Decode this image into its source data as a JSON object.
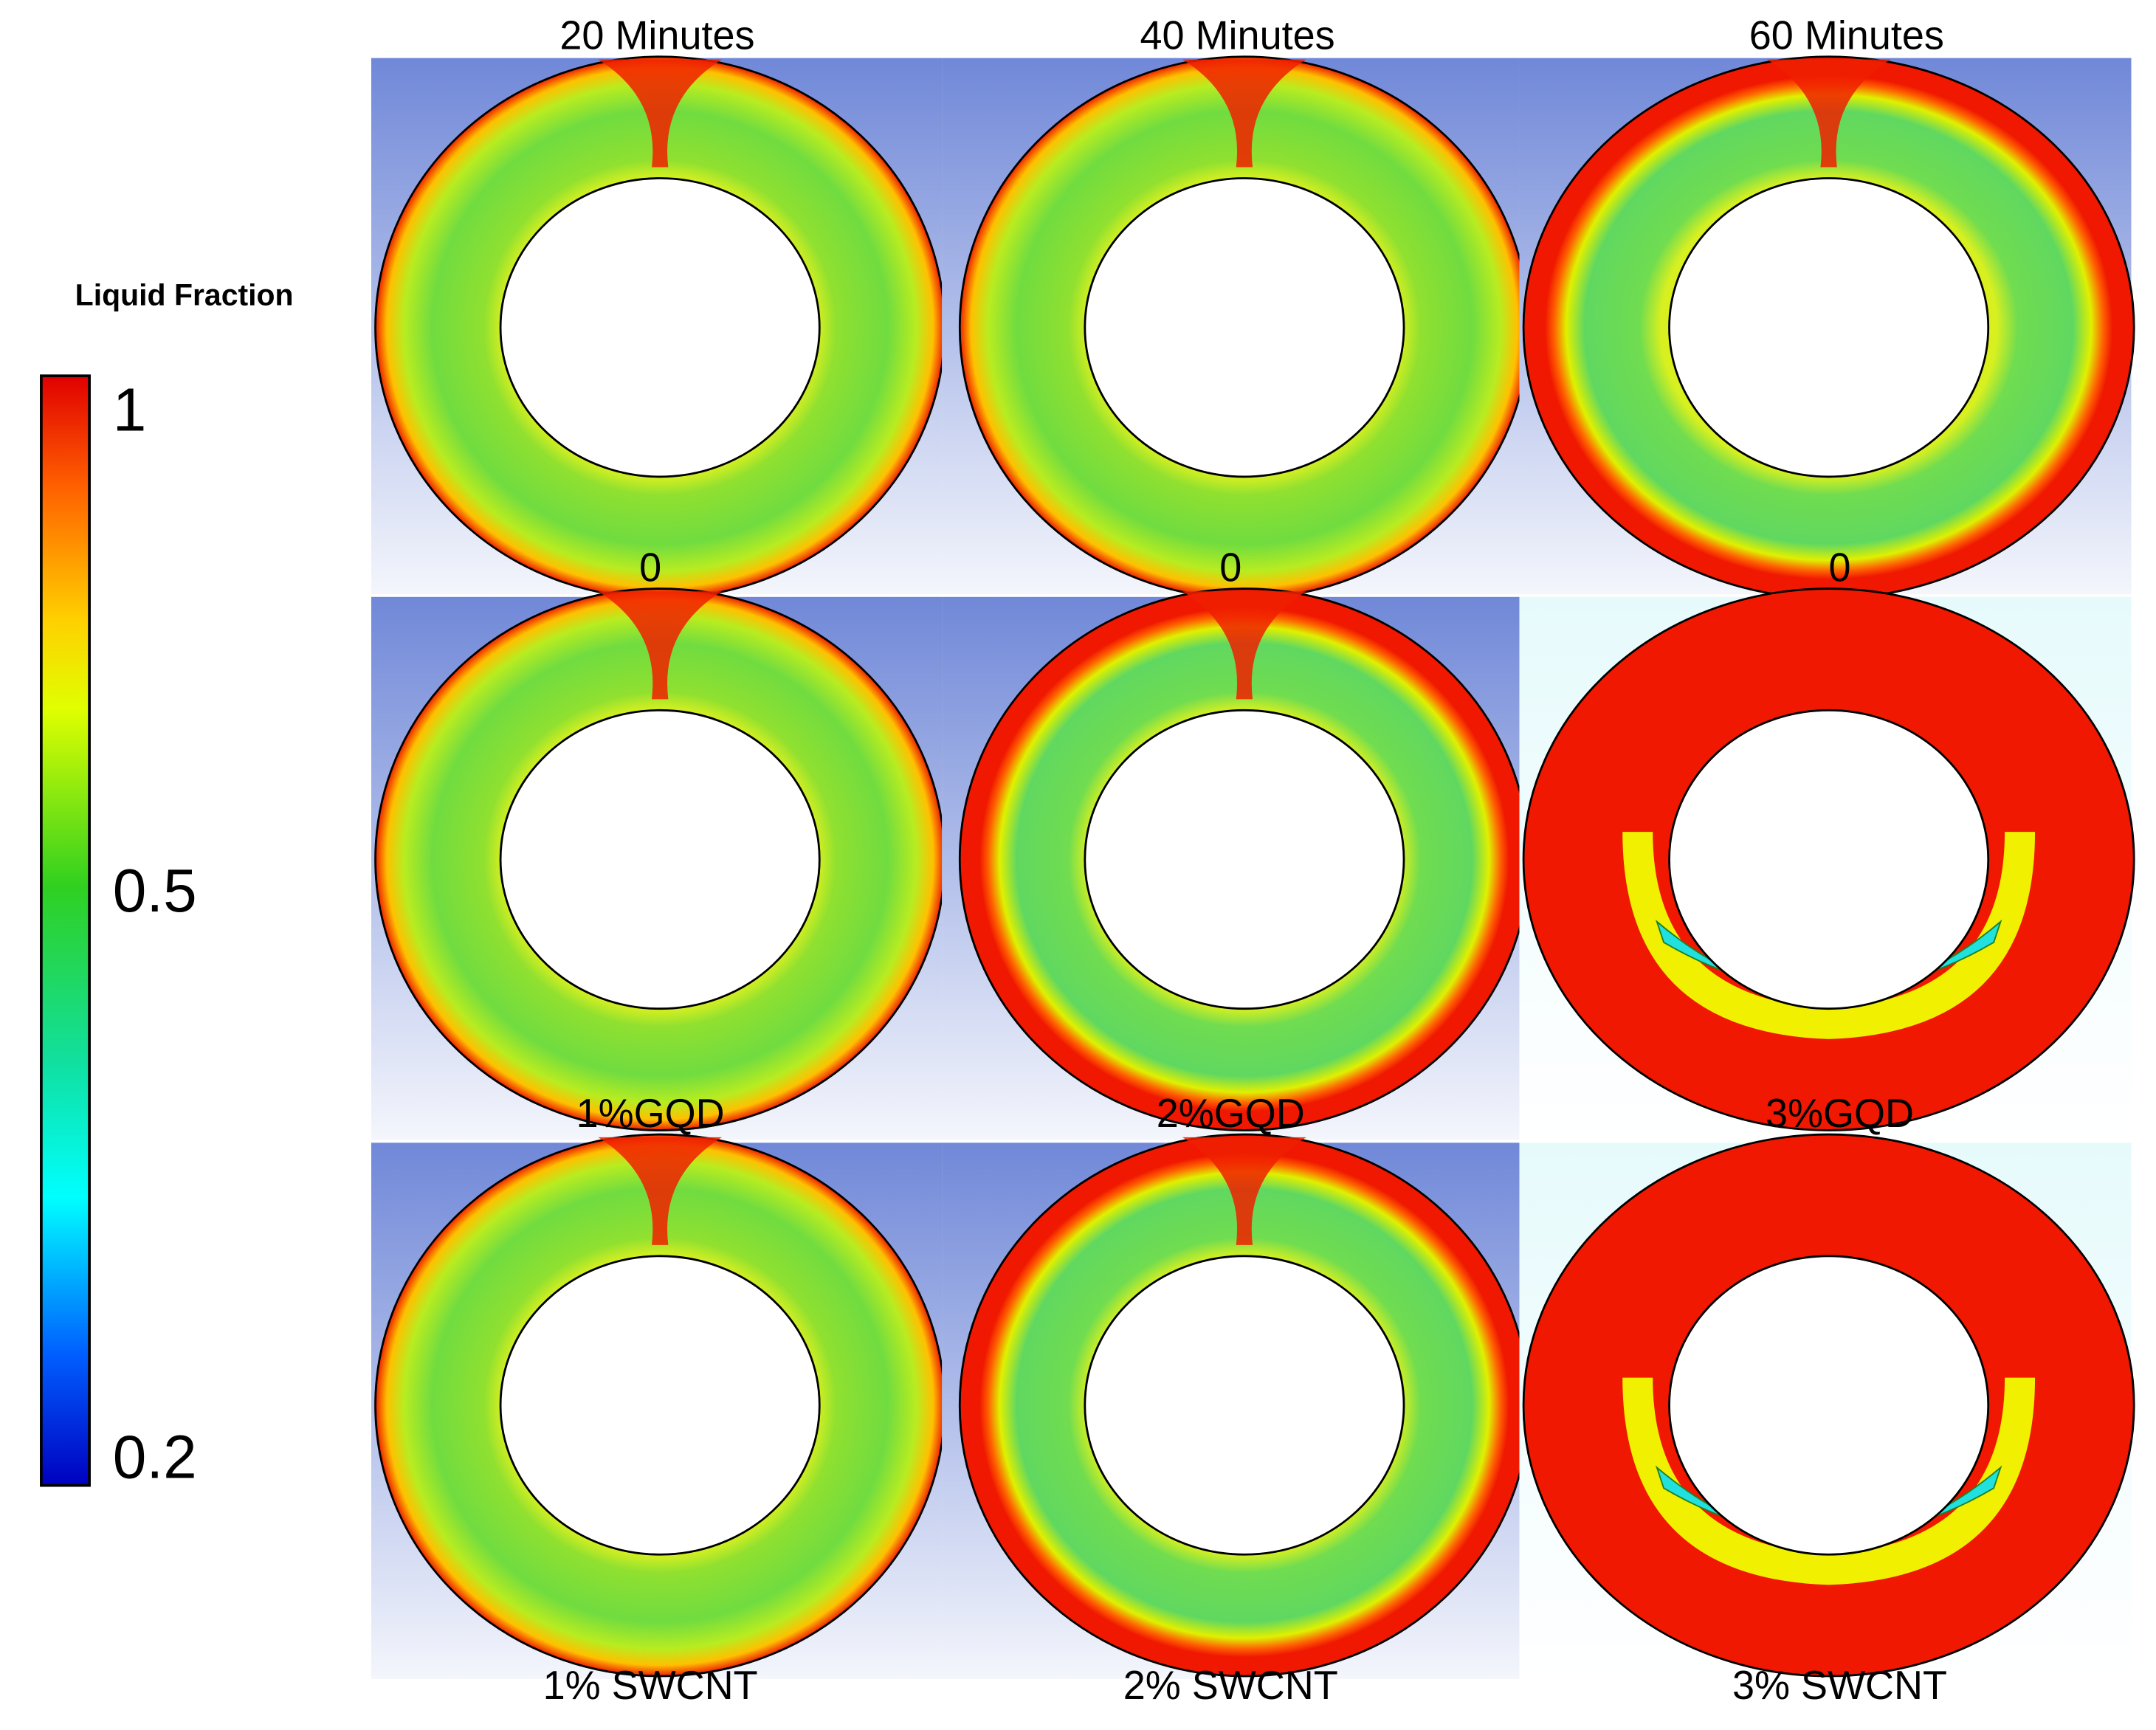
{
  "colorbar": {
    "title": "Liquid Fraction",
    "ticks": [
      1,
      0.5,
      0.2
    ]
  },
  "columns": [
    "20 Minutes",
    "40 Minutes",
    "60 Minutes"
  ],
  "panel_labels": [
    [
      "0",
      "0",
      "0"
    ],
    [
      "1%GQD",
      "2%GQD",
      "3%GQD"
    ],
    [
      "1% SWCNT",
      "2% SWCNT",
      "3% SWCNT"
    ]
  ]
}
